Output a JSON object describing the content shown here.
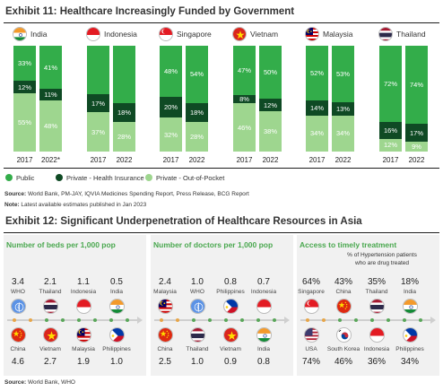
{
  "exhibit11": {
    "title": "Exhibit 11: Healthcare Increasingly Funded by Government",
    "legend": {
      "public": "Public",
      "insurance": "Private - Health Insurance",
      "oop": "Private - Out-of-Pocket"
    },
    "source": "World Bank, PM-JAY, IQVIA Medicines Spending Report, Press Release, BCG Report",
    "source_label": "Source:",
    "note_label": "Note:",
    "note": "Latest available estimates published in Jan 2023"
  },
  "chart_data": {
    "type": "bar",
    "stacked": true,
    "series_order": [
      "public",
      "insurance",
      "oop"
    ],
    "colors": {
      "public": "#33ad4a",
      "insurance": "#0f4a24",
      "oop": "#9ed68f"
    },
    "groups": [
      {
        "country": "India",
        "flag": "india-flag",
        "bars": [
          {
            "year": "2017",
            "public": 33,
            "insurance": 12,
            "oop": 55,
            "labels": {
              "public": "33%",
              "insurance": "12%",
              "oop": "55%"
            }
          },
          {
            "year": "2022*",
            "public": 41,
            "insurance": 11,
            "oop": 48,
            "labels": {
              "public": "41%",
              "insurance": "11%",
              "oop": "48%"
            }
          }
        ]
      },
      {
        "country": "Indonesia",
        "flag": "indonesia-flag",
        "bars": [
          {
            "year": "2017",
            "public": 46,
            "insurance": 17,
            "oop": 37,
            "labels": {
              "public": "",
              "insurance": "17%",
              "oop": "37%"
            }
          },
          {
            "year": "2022",
            "public": 54,
            "insurance": 18,
            "oop": 28,
            "labels": {
              "public": "",
              "insurance": "18%",
              "oop": "28%"
            }
          }
        ]
      },
      {
        "country": "Singapore",
        "flag": "singapore-flag",
        "bars": [
          {
            "year": "2017",
            "public": 48,
            "insurance": 20,
            "oop": 32,
            "labels": {
              "public": "48%",
              "insurance": "20%",
              "oop": "32%"
            }
          },
          {
            "year": "2022",
            "public": 54,
            "insurance": 18,
            "oop": 28,
            "labels": {
              "public": "54%",
              "insurance": "18%",
              "oop": "28%"
            }
          }
        ]
      },
      {
        "country": "Vietnam",
        "flag": "vietnam-flag",
        "bars": [
          {
            "year": "2017",
            "public": 47,
            "insurance": 8,
            "oop": 46,
            "labels": {
              "public": "47%",
              "insurance": "8%",
              "oop": "46%"
            }
          },
          {
            "year": "2022",
            "public": 50,
            "insurance": 12,
            "oop": 38,
            "labels": {
              "public": "50%",
              "insurance": "12%",
              "oop": "38%"
            }
          }
        ]
      },
      {
        "country": "Malaysia",
        "flag": "malaysia-flag",
        "bars": [
          {
            "year": "2017",
            "public": 52,
            "insurance": 14,
            "oop": 34,
            "labels": {
              "public": "52%",
              "insurance": "14%",
              "oop": "34%"
            }
          },
          {
            "year": "2022",
            "public": 53,
            "insurance": 13,
            "oop": 34,
            "labels": {
              "public": "53%",
              "insurance": "13%",
              "oop": "34%"
            }
          }
        ]
      },
      {
        "country": "Thailand",
        "flag": "thailand-flag",
        "bars": [
          {
            "year": "2017",
            "public": 72,
            "insurance": 16,
            "oop": 12,
            "labels": {
              "public": "72%",
              "insurance": "16%",
              "oop": "12%"
            }
          },
          {
            "year": "2022",
            "public": 74,
            "insurance": 17,
            "oop": 9,
            "labels": {
              "public": "74%",
              "insurance": "17%",
              "oop": "9%"
            }
          }
        ]
      }
    ]
  },
  "exhibit12": {
    "title": "Exhibit 12: Significant Underpenetration of Healthcare Resources in Asia",
    "source_label": "Source:",
    "source": "World Bank, WHO",
    "panels": [
      {
        "title": "Number of beds per 1,000 pop",
        "subtitle": "",
        "top": [
          {
            "value": "3.4",
            "name": "WHO",
            "flag": "who-flag"
          },
          {
            "value": "2.1",
            "name": "Thailand",
            "flag": "thailand-flag"
          },
          {
            "value": "1.1",
            "name": "Indonesia",
            "flag": "indonesia-flag"
          },
          {
            "value": "0.5",
            "name": "India",
            "flag": "india-flag"
          }
        ],
        "bottom": [
          {
            "value": "4.6",
            "name": "China",
            "flag": "china-flag"
          },
          {
            "value": "2.7",
            "name": "Vietnam",
            "flag": "vietnam-flag"
          },
          {
            "value": "1.9",
            "name": "Malaysia",
            "flag": "malaysia-flag"
          },
          {
            "value": "1.0",
            "name": "Philippines",
            "flag": "philippines-flag"
          }
        ]
      },
      {
        "title": "Number of doctors per 1,000 pop",
        "subtitle": "",
        "top": [
          {
            "value": "2.4",
            "name": "Malaysia",
            "flag": "malaysia-flag"
          },
          {
            "value": "1.0",
            "name": "WHO",
            "flag": "who-flag"
          },
          {
            "value": "0.8",
            "name": "Philippines",
            "flag": "philippines-flag"
          },
          {
            "value": "0.7",
            "name": "Indonesia",
            "flag": "indonesia-flag"
          }
        ],
        "bottom": [
          {
            "value": "2.5",
            "name": "China",
            "flag": "china-flag"
          },
          {
            "value": "1.0",
            "name": "Thailand",
            "flag": "thailand-flag"
          },
          {
            "value": "0.9",
            "name": "Vietnam",
            "flag": "vietnam-flag"
          },
          {
            "value": "0.8",
            "name": "India",
            "flag": "india-flag"
          }
        ]
      },
      {
        "title": "Access to timely treatment",
        "subtitle": "% of Hypertension patients who are drug treated",
        "top": [
          {
            "value": "64%",
            "name": "Singapore",
            "flag": "singapore-flag"
          },
          {
            "value": "43%",
            "name": "China",
            "flag": "china-flag"
          },
          {
            "value": "35%",
            "name": "Thailand",
            "flag": "thailand-flag"
          },
          {
            "value": "18%",
            "name": "India",
            "flag": "india-flag"
          }
        ],
        "bottom": [
          {
            "value": "74%",
            "name": "USA",
            "flag": "usa-flag"
          },
          {
            "value": "46%",
            "name": "South Korea",
            "flag": "south-korea-flag"
          },
          {
            "value": "36%",
            "name": "Indonesia",
            "flag": "indonesia-flag"
          },
          {
            "value": "34%",
            "name": "Philippines",
            "flag": "philippines-flag"
          }
        ]
      }
    ]
  }
}
